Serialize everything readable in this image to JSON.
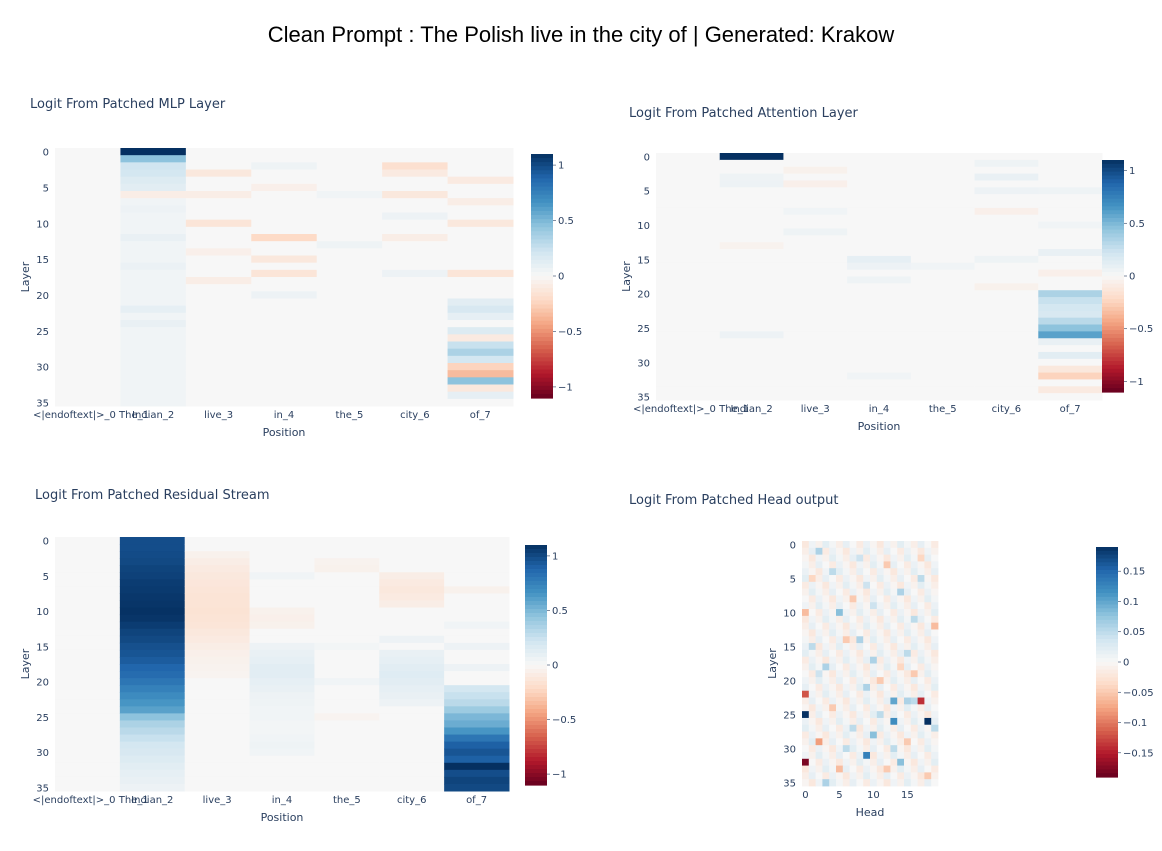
{
  "header": {
    "title": "Clean Prompt : The Polish live in the city of | Generated: Krakow"
  },
  "colorscale": [
    "#67001f",
    "#b2182b",
    "#d6604d",
    "#f4a582",
    "#fddbc7",
    "#f7f7f7",
    "#d1e5f0",
    "#92c5de",
    "#4393c3",
    "#2166ac",
    "#053061"
  ],
  "chart_data": [
    {
      "type": "heatmap",
      "title": "Logit From Patched MLP Layer",
      "xlabel": "Position",
      "ylabel": "Layer",
      "categories": [
        "<|endoftext|>_0 The_1",
        "Indian_2",
        "live_3",
        "in_4",
        "the_5",
        "city_6",
        "of_7"
      ],
      "y_ticks": [
        0,
        5,
        10,
        15,
        20,
        25,
        30,
        35
      ],
      "colorbar": {
        "min": -1.1,
        "max": 1.1,
        "ticks": [
          1,
          0.5,
          0,
          -0.5,
          -1
        ],
        "tick_labels": [
          "1",
          "0.5",
          "0",
          "−0.5",
          "−1"
        ]
      },
      "columns": [
        {
          "name": "<|endoftext|>_0 The_1",
          "base": 0.0,
          "layers": {}
        },
        {
          "name": "Indian_2",
          "base": 0.04,
          "layers": {
            "0": 1.1,
            "1": 0.45,
            "2": 0.22,
            "3": 0.2,
            "4": 0.15,
            "5": 0.12,
            "6": -0.08,
            "8": 0.06,
            "12": 0.08,
            "16": 0.07,
            "22": 0.1,
            "24": 0.08
          }
        },
        {
          "name": "live_3",
          "base": 0.0,
          "layers": {
            "3": -0.12,
            "6": -0.08,
            "10": -0.14,
            "14": -0.06,
            "18": -0.08
          }
        },
        {
          "name": "in_4",
          "base": 0.0,
          "layers": {
            "2": 0.05,
            "5": -0.06,
            "12": -0.22,
            "15": -0.12,
            "17": -0.14,
            "20": 0.06
          }
        },
        {
          "name": "the_5",
          "base": 0.0,
          "layers": {
            "6": 0.04,
            "13": 0.05
          }
        },
        {
          "name": "city_6",
          "base": 0.0,
          "layers": {
            "2": -0.18,
            "3": -0.1,
            "6": -0.12,
            "9": 0.06,
            "12": -0.08,
            "17": 0.06
          }
        },
        {
          "name": "of_7",
          "base": 0.0,
          "layers": {
            "4": -0.1,
            "7": -0.08,
            "10": -0.12,
            "17": -0.14,
            "21": 0.12,
            "22": 0.18,
            "23": 0.1,
            "25": 0.15,
            "26": -0.1,
            "27": 0.25,
            "28": 0.35,
            "29": 0.2,
            "30": -0.25,
            "31": -0.35,
            "32": 0.45,
            "33": -0.12,
            "34": 0.1
          }
        }
      ]
    },
    {
      "type": "heatmap",
      "title": "Logit From Patched Attention Layer",
      "xlabel": "Position",
      "ylabel": "Layer",
      "categories": [
        "<|endoftext|>_0 The_1",
        "Indian_2",
        "live_3",
        "in_4",
        "the_5",
        "city_6",
        "of_7"
      ],
      "y_ticks": [
        0,
        5,
        10,
        15,
        20,
        25,
        30,
        35
      ],
      "colorbar": {
        "min": -1.1,
        "max": 1.1,
        "ticks": [
          1,
          0.5,
          0,
          -0.5,
          -1
        ],
        "tick_labels": [
          "1",
          "0.5",
          "0",
          "−0.5",
          "−1"
        ]
      },
      "columns": [
        {
          "name": "<|endoftext|>_0 The_1",
          "base": 0.0,
          "layers": {}
        },
        {
          "name": "Indian_2",
          "base": 0.0,
          "layers": {
            "0": 1.1,
            "3": 0.05,
            "4": 0.06,
            "13": -0.04,
            "26": 0.06
          }
        },
        {
          "name": "live_3",
          "base": 0.0,
          "layers": {
            "2": -0.05,
            "4": -0.06,
            "8": 0.04,
            "11": 0.05
          }
        },
        {
          "name": "in_4",
          "base": 0.0,
          "layers": {
            "15": 0.1,
            "16": 0.06,
            "18": 0.05,
            "32": 0.04
          }
        },
        {
          "name": "the_5",
          "base": 0.0,
          "layers": {
            "16": 0.04
          }
        },
        {
          "name": "city_6",
          "base": 0.0,
          "layers": {
            "1": 0.05,
            "3": 0.08,
            "5": 0.06,
            "8": -0.06,
            "15": 0.05,
            "19": -0.05
          }
        },
        {
          "name": "of_7",
          "base": 0.0,
          "layers": {
            "5": 0.05,
            "10": 0.04,
            "14": 0.08,
            "17": -0.06,
            "20": 0.35,
            "21": 0.25,
            "22": 0.2,
            "23": 0.18,
            "24": 0.3,
            "25": 0.45,
            "26": 0.6,
            "27": 0.08,
            "29": 0.12,
            "31": -0.12,
            "32": -0.25,
            "34": -0.1
          }
        }
      ]
    },
    {
      "type": "heatmap",
      "title": "Logit From Patched Residual Stream",
      "xlabel": "Position",
      "ylabel": "Layer",
      "categories": [
        "<|endoftext|>_0 The_1",
        "Indian_2",
        "live_3",
        "in_4",
        "the_5",
        "city_6",
        "of_7"
      ],
      "y_ticks": [
        0,
        5,
        10,
        15,
        20,
        25,
        30,
        35
      ],
      "colorbar": {
        "min": -1.1,
        "max": 1.1,
        "ticks": [
          1,
          0.5,
          0,
          -0.5,
          -1
        ],
        "tick_labels": [
          "1",
          "0.5",
          "0",
          "−0.5",
          "−1"
        ]
      },
      "columns": [
        {
          "name": "<|endoftext|>_0 The_1",
          "base": 0.0,
          "layers": {}
        },
        {
          "name": "Indian_2",
          "base": 0.0,
          "layers": {
            "0": 0.98,
            "1": 0.98,
            "2": 0.99,
            "3": 1.0,
            "4": 1.02,
            "5": 1.03,
            "6": 1.05,
            "7": 1.06,
            "8": 1.07,
            "9": 1.08,
            "10": 1.09,
            "11": 1.08,
            "12": 1.05,
            "13": 1.02,
            "14": 1.0,
            "15": 0.97,
            "16": 0.95,
            "17": 0.92,
            "18": 0.88,
            "19": 0.85,
            "20": 0.8,
            "21": 0.75,
            "22": 0.7,
            "23": 0.65,
            "24": 0.6,
            "25": 0.45,
            "26": 0.35,
            "27": 0.3,
            "28": 0.25,
            "29": 0.2,
            "30": 0.18,
            "31": 0.15,
            "32": 0.12,
            "33": 0.1,
            "34": 0.08,
            "35": 0.06
          }
        },
        {
          "name": "live_3",
          "base": 0.0,
          "layers": {
            "2": -0.05,
            "3": -0.08,
            "4": -0.1,
            "5": -0.12,
            "6": -0.13,
            "7": -0.14,
            "8": -0.15,
            "9": -0.15,
            "10": -0.16,
            "11": -0.15,
            "12": -0.14,
            "13": -0.12,
            "14": -0.1,
            "15": -0.08,
            "16": -0.06,
            "17": -0.05,
            "18": -0.04,
            "19": -0.03
          }
        },
        {
          "name": "in_4",
          "base": 0.0,
          "layers": {
            "5": 0.04,
            "10": -0.05,
            "11": -0.06,
            "12": -0.05,
            "15": 0.06,
            "16": 0.08,
            "17": 0.1,
            "18": 0.12,
            "19": 0.12,
            "20": 0.1,
            "21": 0.08,
            "22": 0.06,
            "23": 0.05,
            "24": 0.04,
            "25": 0.04,
            "26": 0.03,
            "27": 0.03,
            "28": 0.04,
            "29": 0.05,
            "30": 0.04
          }
        },
        {
          "name": "the_5",
          "base": 0.0,
          "layers": {
            "3": -0.04,
            "4": -0.05,
            "15": 0.03,
            "20": 0.04,
            "25": -0.03
          }
        },
        {
          "name": "city_6",
          "base": 0.0,
          "layers": {
            "5": -0.08,
            "6": -0.1,
            "7": -0.12,
            "8": -0.1,
            "9": -0.08,
            "14": 0.06,
            "16": 0.08,
            "17": 0.1,
            "18": 0.12,
            "19": 0.14,
            "20": 0.12,
            "21": 0.1,
            "22": 0.08,
            "23": 0.06
          }
        },
        {
          "name": "of_7",
          "base": 0.0,
          "layers": {
            "7": -0.05,
            "12": 0.04,
            "15": 0.06,
            "18": 0.06,
            "21": 0.2,
            "22": 0.25,
            "23": 0.3,
            "24": 0.4,
            "25": 0.5,
            "26": 0.55,
            "27": 0.65,
            "28": 0.8,
            "29": 0.9,
            "30": 0.95,
            "31": 0.9,
            "32": 1.1,
            "33": 0.98,
            "34": 1.02,
            "35": 1.0
          }
        }
      ]
    },
    {
      "type": "heatmap",
      "title": "Logit From Patched Head output",
      "xlabel": "Head",
      "ylabel": "Layer",
      "x_ticks": [
        0,
        5,
        10,
        15
      ],
      "y_ticks": [
        0,
        5,
        10,
        15,
        20,
        25,
        30,
        35
      ],
      "n_cols": 20,
      "n_rows": 36,
      "colorbar": {
        "min": -0.19,
        "max": 0.19,
        "ticks": [
          0.15,
          0.1,
          0.05,
          0,
          -0.05,
          -0.1,
          -0.15
        ],
        "tick_labels": [
          "0.15",
          "0.1",
          "0.05",
          "0",
          "−0.05",
          "−0.1",
          "−0.15"
        ]
      },
      "cells": [
        [
          0,
          25,
          0.2
        ],
        [
          13,
          26,
          0.12
        ],
        [
          18,
          26,
          0.19
        ],
        [
          13,
          23,
          0.1
        ],
        [
          15,
          23,
          0.06
        ],
        [
          17,
          23,
          -0.14
        ],
        [
          9,
          31,
          0.13
        ],
        [
          10,
          28,
          0.08
        ],
        [
          14,
          32,
          0.08
        ],
        [
          16,
          23,
          0.05
        ],
        [
          0,
          32,
          -0.18
        ],
        [
          0,
          22,
          -0.12
        ],
        [
          2,
          29,
          -0.08
        ],
        [
          10,
          17,
          0.06
        ],
        [
          14,
          7,
          0.06
        ],
        [
          5,
          10,
          0.08
        ],
        [
          0,
          10,
          -0.06
        ],
        [
          4,
          4,
          0.05
        ],
        [
          8,
          14,
          0.06
        ],
        [
          12,
          3,
          -0.05
        ],
        [
          17,
          5,
          0.05
        ],
        [
          2,
          1,
          0.06
        ],
        [
          11,
          20,
          -0.05
        ],
        [
          7,
          27,
          0.05
        ],
        [
          3,
          18,
          0.06
        ],
        [
          16,
          19,
          -0.05
        ],
        [
          9,
          21,
          0.06
        ],
        [
          1,
          15,
          0.05
        ],
        [
          6,
          30,
          0.05
        ],
        [
          12,
          33,
          -0.05
        ],
        [
          19,
          12,
          -0.06
        ],
        [
          15,
          16,
          0.05
        ],
        [
          7,
          8,
          -0.05
        ],
        [
          3,
          35,
          0.06
        ],
        [
          18,
          34,
          -0.05
        ],
        [
          11,
          25,
          0.05
        ],
        [
          5,
          33,
          -0.06
        ],
        [
          19,
          27,
          0.05
        ],
        [
          14,
          18,
          -0.04
        ],
        [
          8,
          2,
          0.04
        ],
        [
          1,
          5,
          -0.04
        ],
        [
          16,
          11,
          0.05
        ],
        [
          4,
          24,
          -0.05
        ],
        [
          10,
          9,
          0.04
        ],
        [
          6,
          14,
          -0.05
        ],
        [
          13,
          30,
          0.05
        ],
        [
          2,
          19,
          0.04
        ],
        [
          17,
          2,
          -0.04
        ],
        [
          9,
          6,
          0.04
        ],
        [
          15,
          29,
          -0.05
        ]
      ]
    }
  ]
}
